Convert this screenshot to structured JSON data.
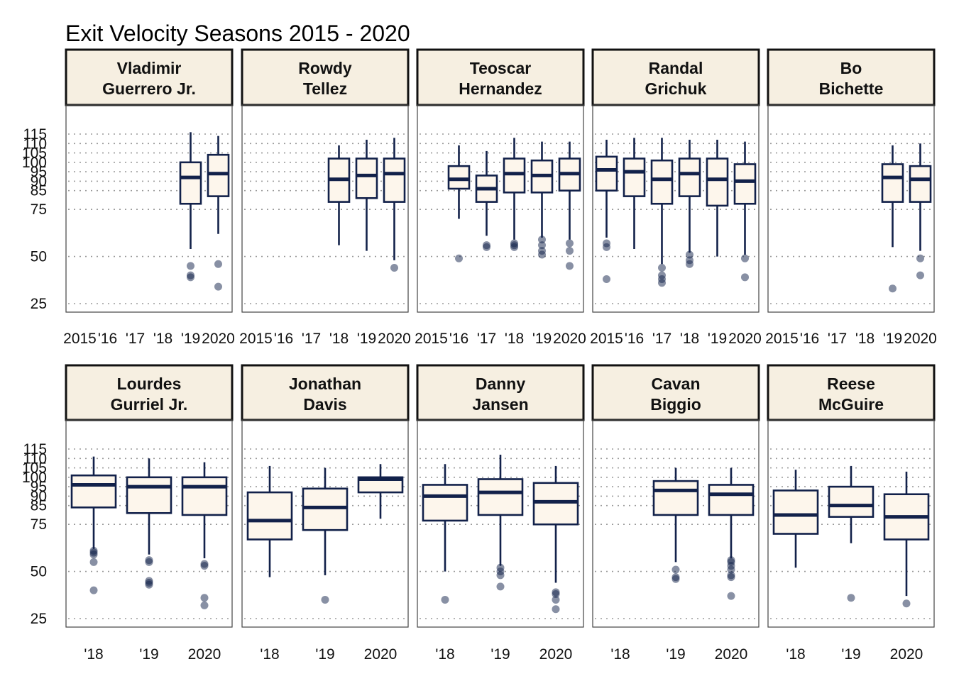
{
  "chart_data": {
    "type": "boxplot",
    "title": "Exit Velocity Seasons 2015 - 2020",
    "ylim": [
      20,
      120
    ],
    "y_ticks": [
      25,
      50,
      75,
      85,
      90,
      95,
      100,
      105,
      110,
      115
    ],
    "colors": {
      "box_fill": "#fdf6ec",
      "box_line": "#12214a",
      "strip_fill": "#f6efe1",
      "grid": "#9a9a9a",
      "outlier": "#12214a"
    },
    "rows": [
      {
        "x_labels": [
          "2015",
          "'16",
          "'17",
          "'18",
          "'19",
          "2020"
        ],
        "panels": [
          {
            "name_line1": "Vladimir",
            "name_line2": "Guerrero Jr.",
            "boxes": [
              {
                "slot": 4,
                "q1": 78,
                "median": 92,
                "q3": 100,
                "lo": 54,
                "hi": 116,
                "out": [
                  45,
                  40,
                  39
                ]
              },
              {
                "slot": 5,
                "q1": 82,
                "median": 94,
                "q3": 104,
                "lo": 62,
                "hi": 114,
                "out": [
                  46,
                  34
                ]
              }
            ]
          },
          {
            "name_line1": "Rowdy",
            "name_line2": "Tellez",
            "boxes": [
              {
                "slot": 3,
                "q1": 79,
                "median": 91,
                "q3": 102,
                "lo": 56,
                "hi": 109,
                "out": []
              },
              {
                "slot": 4,
                "q1": 81,
                "median": 93,
                "q3": 102,
                "lo": 53,
                "hi": 112,
                "out": []
              },
              {
                "slot": 5,
                "q1": 79,
                "median": 94,
                "q3": 102,
                "lo": 48,
                "hi": 113,
                "out": [
                  44
                ]
              }
            ]
          },
          {
            "name_line1": "Teoscar",
            "name_line2": "Hernandez",
            "boxes": [
              {
                "slot": 1,
                "q1": 86,
                "median": 91,
                "q3": 98,
                "lo": 70,
                "hi": 109,
                "out": [
                  49
                ]
              },
              {
                "slot": 2,
                "q1": 79,
                "median": 86,
                "q3": 93,
                "lo": 61,
                "hi": 106,
                "out": [
                  56,
                  55
                ]
              },
              {
                "slot": 3,
                "q1": 84,
                "median": 94,
                "q3": 102,
                "lo": 59,
                "hi": 113,
                "out": [
                  57,
                  56,
                  55
                ]
              },
              {
                "slot": 4,
                "q1": 84,
                "median": 93,
                "q3": 101,
                "lo": 60,
                "hi": 111,
                "out": [
                  59,
                  56,
                  53,
                  51
                ]
              },
              {
                "slot": 5,
                "q1": 85,
                "median": 94,
                "q3": 102,
                "lo": 59,
                "hi": 111,
                "out": [
                  57,
                  53,
                  45
                ]
              }
            ]
          },
          {
            "name_line1": "Randal",
            "name_line2": "Grichuk",
            "boxes": [
              {
                "slot": 0,
                "q1": 85,
                "median": 96,
                "q3": 103,
                "lo": 60,
                "hi": 112,
                "out": [
                  57,
                  55,
                  38
                ]
              },
              {
                "slot": 1,
                "q1": 82,
                "median": 95,
                "q3": 102,
                "lo": 54,
                "hi": 113,
                "out": []
              },
              {
                "slot": 2,
                "q1": 78,
                "median": 91,
                "q3": 101,
                "lo": 46,
                "hi": 113,
                "out": [
                  44,
                  40,
                  38,
                  36
                ]
              },
              {
                "slot": 3,
                "q1": 82,
                "median": 94,
                "q3": 102,
                "lo": 52,
                "hi": 112,
                "out": [
                  51,
                  48,
                  46
                ]
              },
              {
                "slot": 4,
                "q1": 77,
                "median": 91,
                "q3": 102,
                "lo": 50,
                "hi": 112,
                "out": []
              },
              {
                "slot": 5,
                "q1": 78,
                "median": 90,
                "q3": 99,
                "lo": 51,
                "hi": 111,
                "out": [
                  49,
                  39
                ]
              }
            ]
          },
          {
            "name_line1": "Bo",
            "name_line2": "Bichette",
            "boxes": [
              {
                "slot": 4,
                "q1": 79,
                "median": 92,
                "q3": 99,
                "lo": 55,
                "hi": 109,
                "out": [
                  33
                ]
              },
              {
                "slot": 5,
                "q1": 79,
                "median": 91,
                "q3": 98,
                "lo": 53,
                "hi": 110,
                "out": [
                  49,
                  40
                ]
              }
            ]
          }
        ]
      },
      {
        "x_labels": [
          "'18",
          "'19",
          "2020"
        ],
        "panels": [
          {
            "name_line1": "Lourdes",
            "name_line2": "Gurriel Jr.",
            "boxes": [
              {
                "slot": 0,
                "q1": 84,
                "median": 96,
                "q3": 101,
                "lo": 62,
                "hi": 111,
                "out": [
                  61,
                  60,
                  59,
                  55,
                  40
                ]
              },
              {
                "slot": 1,
                "q1": 81,
                "median": 95,
                "q3": 100,
                "lo": 59,
                "hi": 110,
                "out": [
                  56,
                  55,
                  45,
                  44,
                  43
                ]
              },
              {
                "slot": 2,
                "q1": 80,
                "median": 95,
                "q3": 100,
                "lo": 57,
                "hi": 108,
                "out": [
                  54,
                  53,
                  36,
                  32
                ]
              }
            ]
          },
          {
            "name_line1": "Jonathan",
            "name_line2": "Davis",
            "boxes": [
              {
                "slot": 0,
                "q1": 67,
                "median": 77,
                "q3": 92,
                "lo": 47,
                "hi": 106,
                "out": []
              },
              {
                "slot": 1,
                "q1": 72,
                "median": 84,
                "q3": 94,
                "lo": 48,
                "hi": 105,
                "out": [
                  35
                ]
              },
              {
                "slot": 2,
                "q1": 92,
                "median": 99,
                "q3": 100,
                "lo": 78,
                "hi": 107,
                "out": []
              }
            ]
          },
          {
            "name_line1": "Danny",
            "name_line2": "Jansen",
            "boxes": [
              {
                "slot": 0,
                "q1": 77,
                "median": 90,
                "q3": 96,
                "lo": 50,
                "hi": 107,
                "out": [
                  35
                ]
              },
              {
                "slot": 1,
                "q1": 80,
                "median": 92,
                "q3": 99,
                "lo": 53,
                "hi": 112,
                "out": [
                  52,
                  50,
                  48,
                  42
                ]
              },
              {
                "slot": 2,
                "q1": 75,
                "median": 87,
                "q3": 97,
                "lo": 44,
                "hi": 106,
                "out": [
                  39,
                  38,
                  35,
                  30
                ]
              }
            ]
          },
          {
            "name_line1": "Cavan",
            "name_line2": "Biggio",
            "boxes": [
              {
                "slot": 1,
                "q1": 80,
                "median": 93,
                "q3": 98,
                "lo": 55,
                "hi": 105,
                "out": [
                  51,
                  47,
                  46
                ]
              },
              {
                "slot": 2,
                "q1": 80,
                "median": 91,
                "q3": 96,
                "lo": 57,
                "hi": 105,
                "out": [
                  56,
                  55,
                  53,
                  51,
                  48,
                  47,
                  37
                ]
              }
            ]
          },
          {
            "name_line1": "Reese",
            "name_line2": "McGuire",
            "boxes": [
              {
                "slot": 0,
                "q1": 70,
                "median": 80,
                "q3": 93,
                "lo": 52,
                "hi": 104,
                "out": []
              },
              {
                "slot": 1,
                "q1": 79,
                "median": 85,
                "q3": 95,
                "lo": 65,
                "hi": 106,
                "out": [
                  36
                ]
              },
              {
                "slot": 2,
                "q1": 67,
                "median": 79,
                "q3": 91,
                "lo": 37,
                "hi": 103,
                "out": [
                  33
                ]
              }
            ]
          }
        ]
      }
    ]
  }
}
